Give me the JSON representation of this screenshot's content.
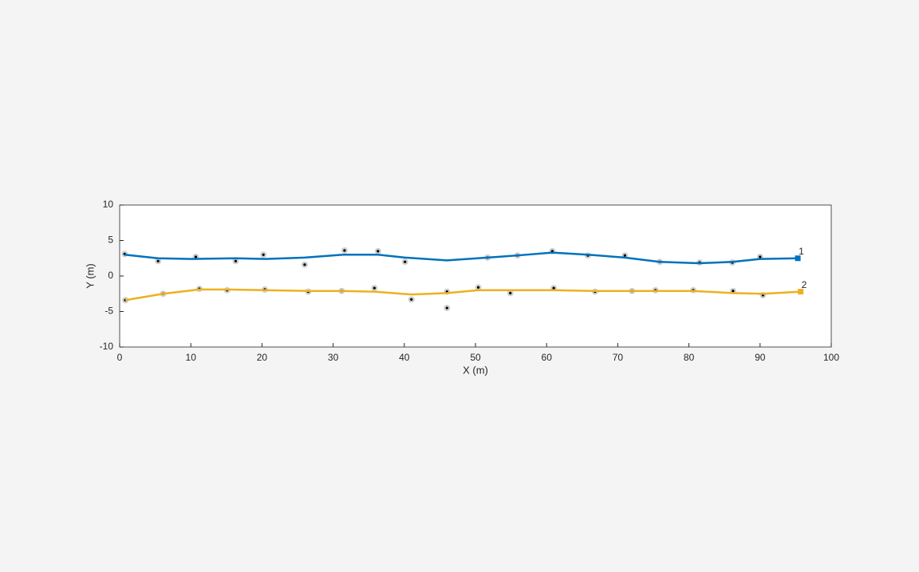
{
  "chart_data": {
    "type": "line",
    "xlabel": "X (m)",
    "ylabel": "Y (m)",
    "xlim": [
      0,
      100
    ],
    "ylim": [
      -10,
      10
    ],
    "xticks": [
      0,
      10,
      20,
      30,
      40,
      50,
      60,
      70,
      80,
      90,
      100
    ],
    "yticks": [
      -10,
      -5,
      0,
      5,
      10
    ],
    "grid": false,
    "series": [
      {
        "label": "1",
        "color": "#0072bd",
        "x": [
          0.7,
          5.4,
          10.1,
          16.3,
          20.5,
          26.0,
          31.4,
          36.3,
          40.1,
          46.0,
          51.7,
          55.9,
          60.8,
          65.8,
          71.0,
          75.9,
          81.5,
          86.1,
          90.0,
          95.3
        ],
        "values": [
          3.0,
          2.5,
          2.4,
          2.5,
          2.4,
          2.6,
          3.0,
          3.0,
          2.6,
          2.2,
          2.6,
          2.9,
          3.3,
          3.0,
          2.6,
          2.0,
          1.8,
          2.0,
          2.4,
          2.5
        ]
      },
      {
        "label": "2",
        "color": "#edb120",
        "x": [
          0.8,
          6.1,
          11.2,
          15.1,
          20.4,
          26.5,
          31.2,
          35.8,
          41.0,
          46.0,
          50.4,
          54.9,
          61.0,
          66.8,
          72.0,
          75.3,
          80.6,
          86.2,
          90.4,
          95.7
        ],
        "values": [
          -3.4,
          -2.5,
          -1.9,
          -1.9,
          -2.0,
          -2.1,
          -2.1,
          -2.2,
          -2.6,
          -2.4,
          -2.0,
          -2.0,
          -2.0,
          -2.1,
          -2.1,
          -2.1,
          -2.1,
          -2.4,
          -2.5,
          -2.2
        ]
      }
    ],
    "detections": {
      "x": [
        0.7,
        5.4,
        10.7,
        16.3,
        20.2,
        26.0,
        31.6,
        36.3,
        40.1,
        51.7,
        55.9,
        60.8,
        65.8,
        71.0,
        75.9,
        81.5,
        86.1,
        90.0,
        0.8,
        6.1,
        11.2,
        15.1,
        20.4,
        26.5,
        31.2,
        35.8,
        41.0,
        46.0,
        46.0,
        50.4,
        54.9,
        61.0,
        66.8,
        72.0,
        75.3,
        80.6,
        86.2,
        90.4
      ],
      "values": [
        3.1,
        2.1,
        2.7,
        2.1,
        3.0,
        1.6,
        3.6,
        3.5,
        2.0,
        2.6,
        2.9,
        3.5,
        2.9,
        2.9,
        2.0,
        1.9,
        1.9,
        2.7,
        -3.4,
        -2.5,
        -1.8,
        -2.0,
        -1.9,
        -2.2,
        -2.1,
        -1.7,
        -3.3,
        -2.2,
        -4.5,
        -1.6,
        -2.4,
        -1.7,
        -2.2,
        -2.1,
        -2.0,
        -2.0,
        -2.1,
        -2.7
      ]
    }
  }
}
